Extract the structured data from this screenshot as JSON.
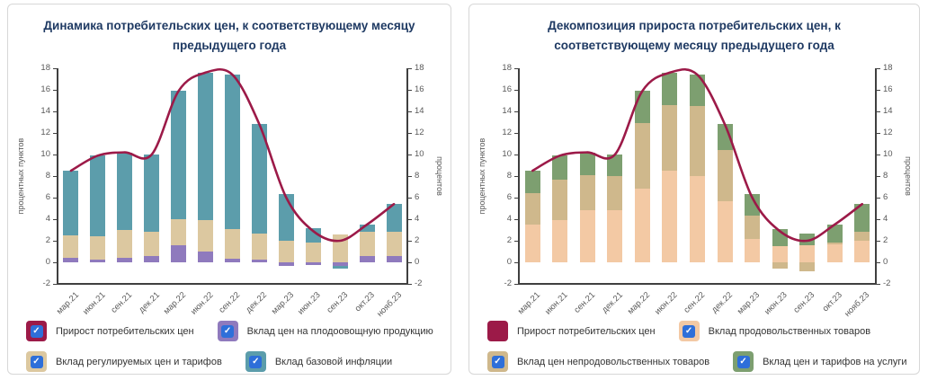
{
  "colors": {
    "title": "#1f3a63",
    "axis_text": "#595959",
    "axis_line": "#3f3f3f",
    "checkbox_blue": "#2e6fd9",
    "cpi_line": "#9c1a48"
  },
  "chart_data": [
    {
      "type": "stacked_bar_with_line",
      "title": "Динамика потребительских цен, к соответствующему месяцу\nпредыдущего года",
      "ylabel_left": "процентных пунктов",
      "ylabel_right": "процентов",
      "ylim": [
        -2,
        18
      ],
      "yticks": [
        18,
        16,
        14,
        12,
        10,
        8,
        6,
        4,
        2,
        0,
        -2
      ],
      "grid": false,
      "categories": [
        "мар.21",
        "июн.21",
        "сен.21",
        "дек.21",
        "мар.22",
        "июн.22",
        "сен.22",
        "дек.22",
        "мар.23",
        "июн.23",
        "сен.23",
        "окт.23",
        "нояб.23"
      ],
      "series": [
        {
          "name": "Вклад цен на плодоовощную продукцию",
          "color": "#8f7abd",
          "values": [
            0.4,
            0.25,
            0.4,
            0.55,
            1.55,
            1.0,
            0.3,
            0.25,
            -0.3,
            -0.25,
            -0.3,
            0.55,
            0.6
          ]
        },
        {
          "name": "Вклад регулируемых цен и тарифов",
          "color": "#dcc8a0",
          "values": [
            2.1,
            2.2,
            2.6,
            2.3,
            2.45,
            2.9,
            2.8,
            2.4,
            2.0,
            1.8,
            2.6,
            2.25,
            2.25
          ]
        },
        {
          "name": "Вклад базовой инфляции",
          "color": "#5c9dab",
          "values": [
            6.0,
            7.45,
            7.2,
            7.15,
            11.9,
            13.7,
            14.3,
            10.15,
            4.3,
            1.35,
            -0.3,
            0.7,
            2.55
          ]
        }
      ],
      "line": {
        "name": "Прирост потребительских цен",
        "color": "#9c1a48",
        "values": [
          8.5,
          9.9,
          10.2,
          10.0,
          15.9,
          17.6,
          17.4,
          12.8,
          6.0,
          2.9,
          2.0,
          3.5,
          5.4
        ]
      },
      "legend": [
        {
          "label": "Прирост потребительских цен",
          "color": "#9c1a48",
          "checkbox": true,
          "checked": true
        },
        {
          "label": "Вклад цен на плодоовощную продукцию",
          "color": "#8f7abd",
          "checkbox": true,
          "checked": true
        },
        {
          "label": "Вклад регулируемых цен и тарифов",
          "color": "#dcc8a0",
          "checkbox": true,
          "checked": true
        },
        {
          "label": "Вклад базовой инфляции",
          "color": "#5c9dab",
          "checkbox": true,
          "checked": true
        }
      ]
    },
    {
      "type": "stacked_bar_with_line",
      "title": "Декомпозиция прироста потребительских цен, к\nсоответствующему месяцу предыдущего года",
      "ylabel_left": "процентных пунктов",
      "ylabel_right": "процентов",
      "ylim": [
        -2,
        18
      ],
      "yticks": [
        18,
        16,
        14,
        12,
        10,
        8,
        6,
        4,
        2,
        0,
        -2
      ],
      "grid": false,
      "categories": [
        "мар.21",
        "июн.21",
        "сен.21",
        "дек.21",
        "мар.22",
        "июн.22",
        "сен.22",
        "дек.22",
        "мар.23",
        "июн.23",
        "сен.23",
        "окт.23",
        "нояб.23"
      ],
      "series": [
        {
          "name": "Вклад продовольственных товаров",
          "color": "#f3c9a4",
          "values": [
            3.5,
            3.9,
            4.85,
            4.85,
            6.8,
            8.5,
            8.0,
            5.7,
            2.2,
            1.5,
            1.6,
            1.7,
            2.0
          ]
        },
        {
          "name": "Вклад цен непродовольственных товаров",
          "color": "#cfb88c",
          "values": [
            2.9,
            3.8,
            3.25,
            3.15,
            6.1,
            6.1,
            6.5,
            4.7,
            2.1,
            -0.6,
            -0.8,
            0.1,
            0.8
          ]
        },
        {
          "name": "Вклад цен и тарифов на услуги",
          "color": "#7d9f70",
          "values": [
            2.1,
            2.2,
            2.1,
            2.0,
            3.0,
            3.0,
            2.9,
            2.4,
            2.0,
            1.6,
            1.1,
            1.7,
            2.6
          ]
        }
      ],
      "line": {
        "name": "Прирост потребительских цен",
        "color": "#9c1a48",
        "values": [
          8.5,
          9.9,
          10.2,
          10.0,
          15.9,
          17.6,
          17.4,
          12.8,
          6.0,
          2.9,
          2.0,
          3.5,
          5.4
        ]
      },
      "legend": [
        {
          "label": "Прирост потребительских цен",
          "color": "#9c1a48",
          "checkbox": false,
          "checked": true
        },
        {
          "label": "Вклад продовольственных товаров",
          "color": "#f3c9a4",
          "checkbox": true,
          "checked": true
        },
        {
          "label": "Вклад цен непродовольственных товаров",
          "color": "#cfb88c",
          "checkbox": true,
          "checked": true
        },
        {
          "label": "Вклад цен и тарифов на услуги",
          "color": "#7d9f70",
          "checkbox": true,
          "checked": true
        }
      ]
    }
  ]
}
